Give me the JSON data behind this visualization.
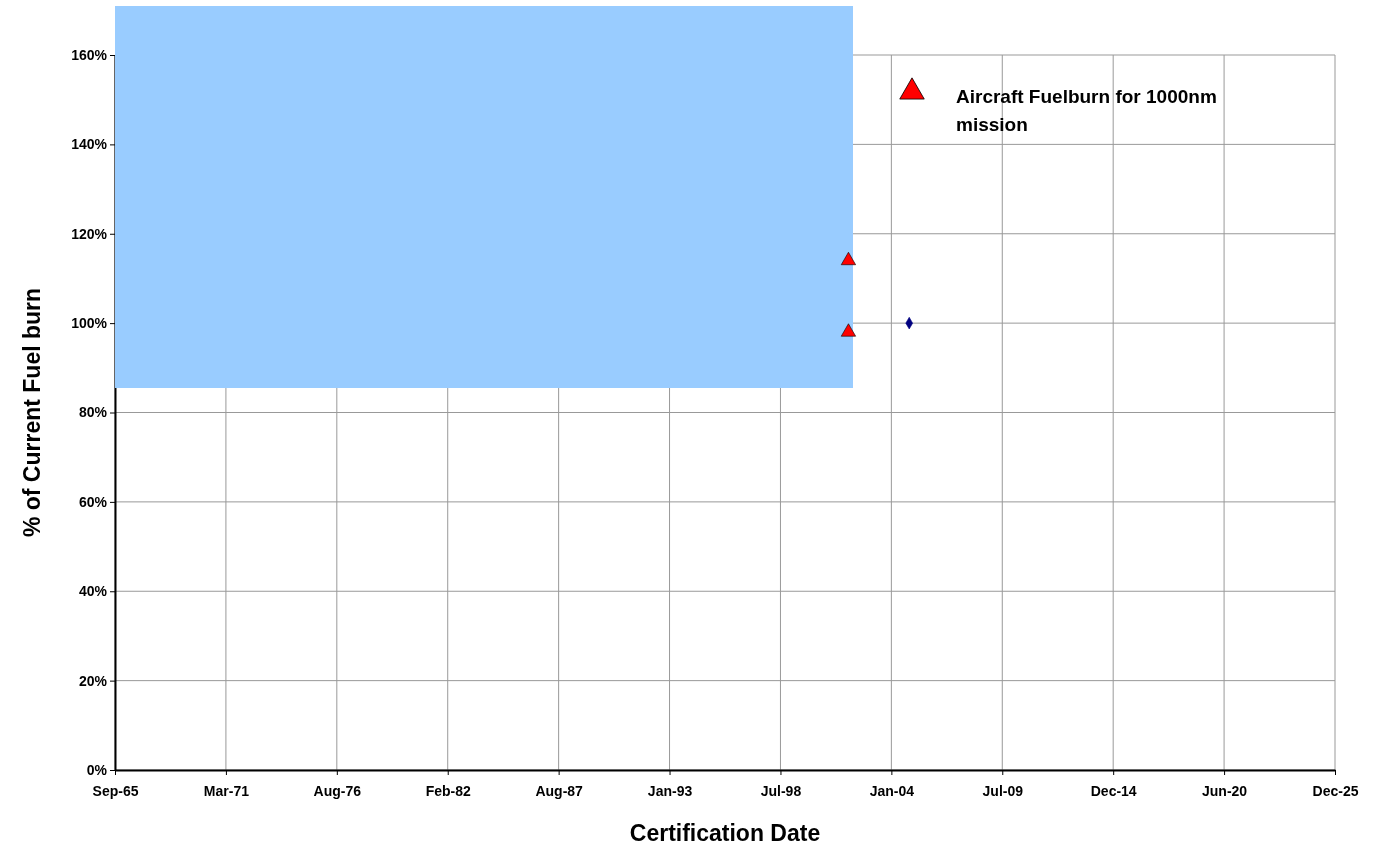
{
  "chart_data": {
    "type": "scatter",
    "xlabel": "Certification Date",
    "ylabel": "% of Current Fuel burn",
    "xlim": [
      "1965-09-15",
      "2025-12-09"
    ],
    "xticks": [
      {
        "value": "1965-09-15",
        "label": "Sep-65"
      },
      {
        "value": "1971-03-08",
        "label": "Mar-71"
      },
      {
        "value": "1976-08-28",
        "label": "Aug-76"
      },
      {
        "value": "1982-02-18",
        "label": "Feb-82"
      },
      {
        "value": "1987-08-11",
        "label": "Aug-87"
      },
      {
        "value": "1993-01-31",
        "label": "Jan-93"
      },
      {
        "value": "1998-07-24",
        "label": "Jul-98"
      },
      {
        "value": "2004-01-14",
        "label": "Jan-04"
      },
      {
        "value": "2009-07-06",
        "label": "Jul-09"
      },
      {
        "value": "2014-12-27",
        "label": "Dec-14"
      },
      {
        "value": "2020-06-18",
        "label": "Jun-20"
      },
      {
        "value": "2025-12-09",
        "label": "Dec-25"
      }
    ],
    "ylim": [
      0,
      160
    ],
    "yticks": [
      {
        "value": 0,
        "label": "0%"
      },
      {
        "value": 20,
        "label": "20%"
      },
      {
        "value": 40,
        "label": "40%"
      },
      {
        "value": 60,
        "label": "60%"
      },
      {
        "value": 80,
        "label": "80%"
      },
      {
        "value": 100,
        "label": "100%"
      },
      {
        "value": 120,
        "label": "120%"
      },
      {
        "value": 140,
        "label": "140%"
      },
      {
        "value": 160,
        "label": "160%"
      }
    ],
    "grid": true,
    "legend": "top right",
    "series": [
      {
        "name": "Aircraft Fuelburn for 1000nm mission",
        "color": "#ff0000",
        "marker": "triangle",
        "x": [
          "2001-12",
          "2001-12"
        ],
        "values": [
          114,
          98
        ]
      },
      {
        "color": "#000080",
        "marker": "diamond",
        "x": [
          "2004-12"
        ],
        "values": [
          100
        ]
      }
    ]
  }
}
